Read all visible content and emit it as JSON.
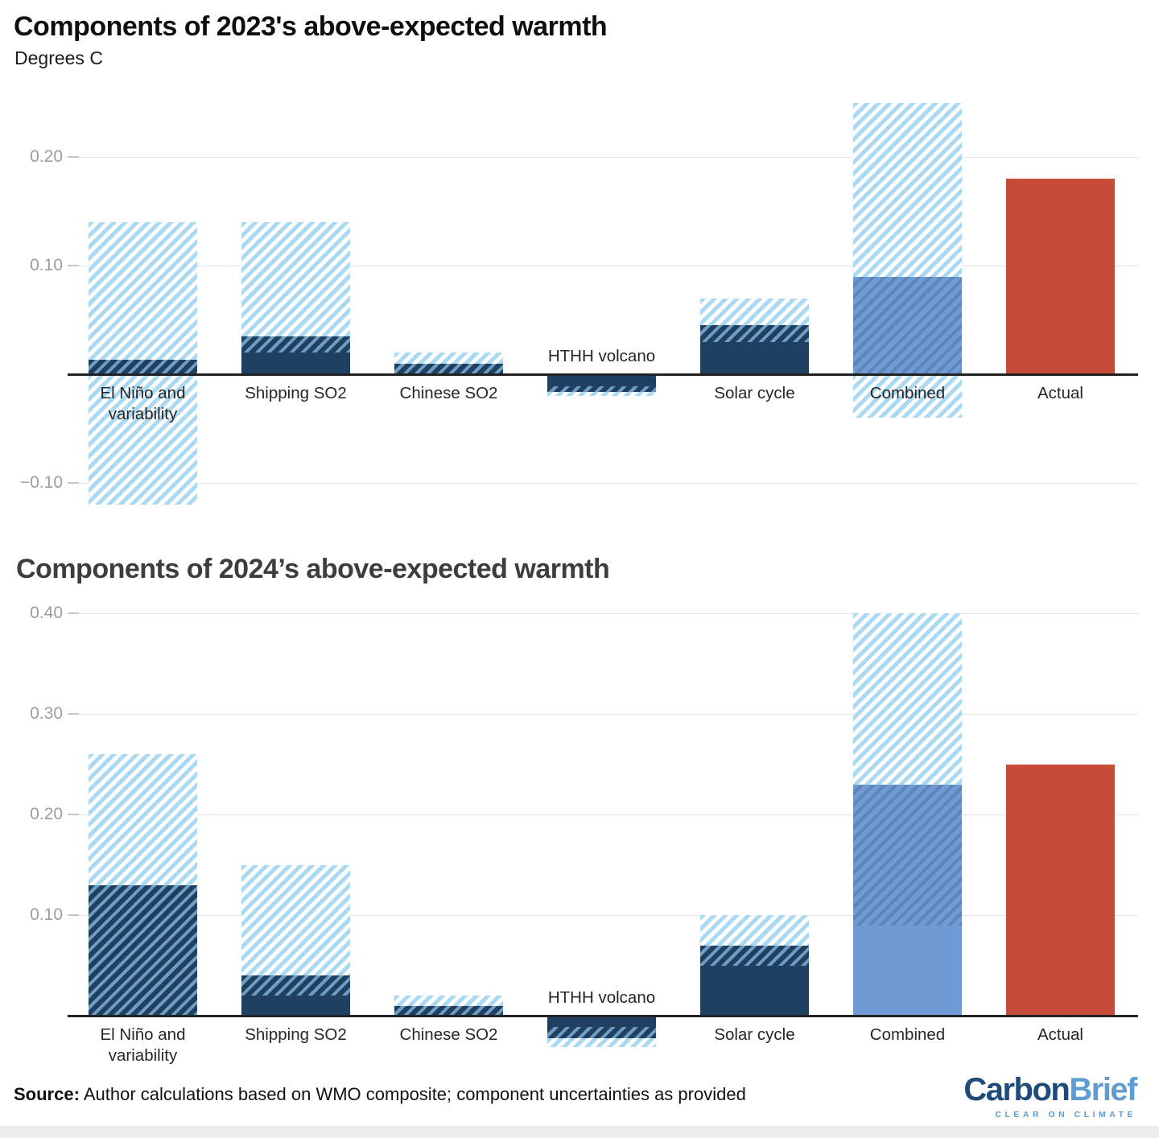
{
  "charts": [
    {
      "title": "Components of 2023's above-expected warmth",
      "subtitle": "Degrees C",
      "chart_data": {
        "type": "bar",
        "title": "Components of 2023's above-expected warmth",
        "ylabel": "Degrees C",
        "grid": true,
        "legend": false,
        "ylim": [
          -0.135,
          0.263
        ],
        "categories": [
          "El Niño and variability",
          "Shipping SO2",
          "Chinese SO2",
          "HTHH volcano",
          "Solar cycle",
          "Combined",
          "Actual"
        ],
        "series": [
          {
            "name": "El Niño and variability",
            "style": "component",
            "central": 0.013,
            "low": -0.12,
            "high": 0.14
          },
          {
            "name": "Shipping SO2",
            "style": "component",
            "central": 0.035,
            "low": 0.02,
            "high": 0.14
          },
          {
            "name": "Chinese SO2",
            "style": "component",
            "central": 0.01,
            "low": 0.0,
            "high": 0.02
          },
          {
            "name": "HTHH volcano",
            "style": "component",
            "central": -0.016,
            "low": -0.02,
            "high": -0.011
          },
          {
            "name": "Solar cycle",
            "style": "component",
            "central": 0.045,
            "low": 0.03,
            "high": 0.07
          },
          {
            "name": "Combined",
            "style": "combined",
            "central": 0.09,
            "low": -0.04,
            "high": 0.25
          },
          {
            "name": "Actual",
            "style": "actual",
            "value": 0.18
          }
        ],
        "yticks": [
          {
            "label": "0.20",
            "value": 0.2
          },
          {
            "label": "0.10",
            "value": 0.1
          },
          {
            "label": "−0.10",
            "value": -0.1
          }
        ]
      }
    },
    {
      "title": "Components of 2024’s above-expected warmth",
      "subtitle": "",
      "chart_data": {
        "type": "bar",
        "title": "Components of 2024’s above-expected warmth",
        "ylabel": "Degrees C",
        "grid": true,
        "legend": false,
        "ylim": [
          -0.05,
          0.414
        ],
        "categories": [
          "El Niño and variability",
          "Shipping SO2",
          "Chinese SO2",
          "HTHH volcano",
          "Solar cycle",
          "Combined",
          "Actual"
        ],
        "series": [
          {
            "name": "El Niño and variability",
            "style": "component",
            "central": 0.13,
            "low": 0.0,
            "high": 0.26
          },
          {
            "name": "Shipping SO2",
            "style": "component",
            "central": 0.04,
            "low": 0.02,
            "high": 0.15
          },
          {
            "name": "Chinese SO2",
            "style": "component",
            "central": 0.01,
            "low": 0.0,
            "high": 0.02
          },
          {
            "name": "HTHH volcano",
            "style": "component",
            "central": -0.022,
            "low": -0.031,
            "high": -0.011
          },
          {
            "name": "Solar cycle",
            "style": "component",
            "central": 0.07,
            "low": 0.05,
            "high": 0.1
          },
          {
            "name": "Combined",
            "style": "combined",
            "central": 0.23,
            "low": 0.09,
            "high": 0.4
          },
          {
            "name": "Actual",
            "style": "actual",
            "value": 0.25
          }
        ],
        "yticks": [
          {
            "label": "0.40",
            "value": 0.4
          },
          {
            "label": "0.30",
            "value": 0.3
          },
          {
            "label": "0.20",
            "value": 0.2
          },
          {
            "label": "0.10",
            "value": 0.1
          }
        ]
      }
    }
  ],
  "footer": {
    "source_label": "Source:",
    "source_text": " Author calculations based on WMO composite; component uncertainties as provided"
  },
  "logo": {
    "part1": "Carbon",
    "part2": "Brief",
    "tagline": "CLEAR ON CLIMATE"
  },
  "colors": {
    "navy": "#1f4060",
    "navy_overlap_stripe": "#6f9dc2",
    "combined_blue": "#6f9ad3",
    "combined_overlap_stripe": "#5d86b8",
    "hatch_light_blue": "#aadaf3",
    "hatch_gap_white": "#ffffff",
    "actual_red": "#c64c3a",
    "logo_dark_blue": "#1e4b7c",
    "logo_light_blue": "#5f9cd4"
  }
}
